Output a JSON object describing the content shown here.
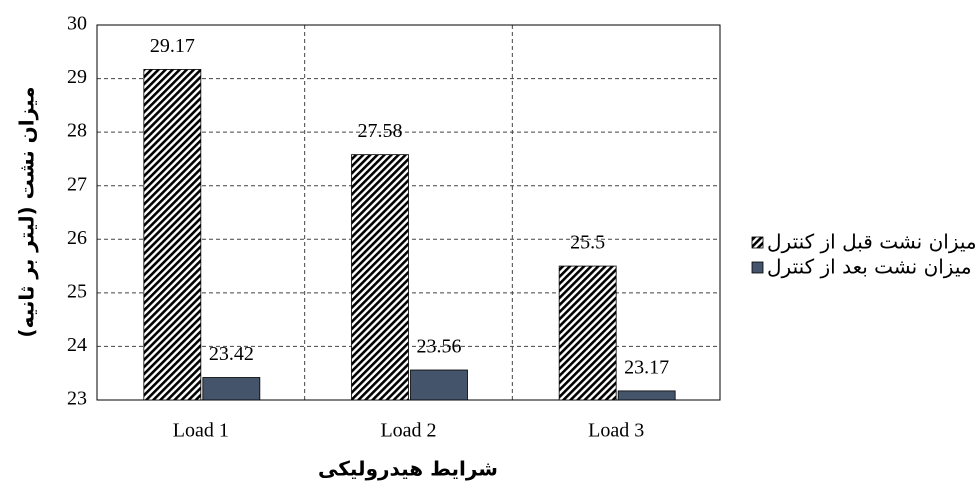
{
  "chart_data": {
    "type": "bar",
    "x_label": "شرایط هیدرولیکی",
    "y_label": "میزان نشت (لیتر بر ثانیه)",
    "categories": [
      "Load 1",
      "Load 2",
      "Load 3"
    ],
    "series": [
      {
        "name": "میزان نشت قبل از کنترل",
        "color": "hatch",
        "values": [
          29.17,
          27.58,
          25.5
        ]
      },
      {
        "name": "میزان نشت بعد از کنترل",
        "color": "#44546a",
        "values": [
          23.42,
          23.56,
          23.17
        ]
      }
    ],
    "ylim": [
      23,
      30
    ],
    "yticks": [
      23,
      24,
      25,
      26,
      27,
      28,
      29,
      30
    ],
    "grid": true,
    "legend": "right"
  }
}
